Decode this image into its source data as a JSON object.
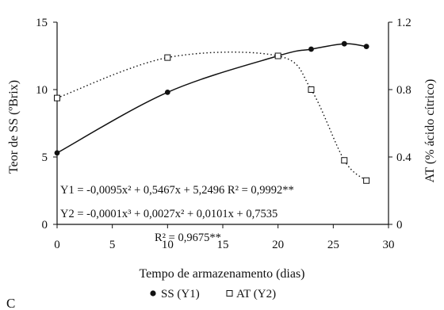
{
  "chart_data": {
    "type": "scatter",
    "panel_label": "C",
    "xlabel": "Tempo de armazenamento (dias)",
    "ylabel_left": "Teor de SS (ºBrix)",
    "ylabel_right": "AT (% ácido cítrico)",
    "xlim": [
      0,
      30
    ],
    "ylim_left": [
      0,
      15
    ],
    "ylim_right": [
      0,
      1.2
    ],
    "x_ticks": [
      0,
      5,
      10,
      15,
      20,
      25,
      30
    ],
    "y_left_ticks": [
      0,
      5,
      10,
      15
    ],
    "y_right_ticks": [
      0,
      0.4,
      0.8,
      1.2
    ],
    "x_tick_labels": [
      "0",
      "5",
      "10",
      "15",
      "20",
      "25",
      "30"
    ],
    "y_left_tick_labels": [
      "0",
      "5",
      "10",
      "15"
    ],
    "y_right_tick_labels": [
      "0",
      "0.4",
      "0.8",
      "1.2"
    ],
    "grid": false,
    "legend_position": "bottom-center",
    "series": [
      {
        "name": "SS (Y1)",
        "axis": "left",
        "marker": "filled-circle",
        "line_style": "solid",
        "x": [
          0,
          10,
          20,
          23,
          26,
          28
        ],
        "y": [
          5.3,
          9.8,
          12.5,
          13.0,
          13.4,
          13.2
        ]
      },
      {
        "name": "AT (Y2)",
        "axis": "right",
        "marker": "open-square",
        "line_style": "dotted",
        "x": [
          0,
          10,
          20,
          23,
          26,
          28
        ],
        "y": [
          0.75,
          0.99,
          1.0,
          0.8,
          0.38,
          0.26
        ]
      }
    ],
    "equations": {
      "y1": "Y1 = -0,0095x² + 0,5467x + 5,2496   R² = 0,9992**",
      "y2": "Y2 = -0,0001x³ + 0,0027x² + 0,0101x + 0,7535",
      "y2_r2": "R² = 0,9675**"
    }
  }
}
